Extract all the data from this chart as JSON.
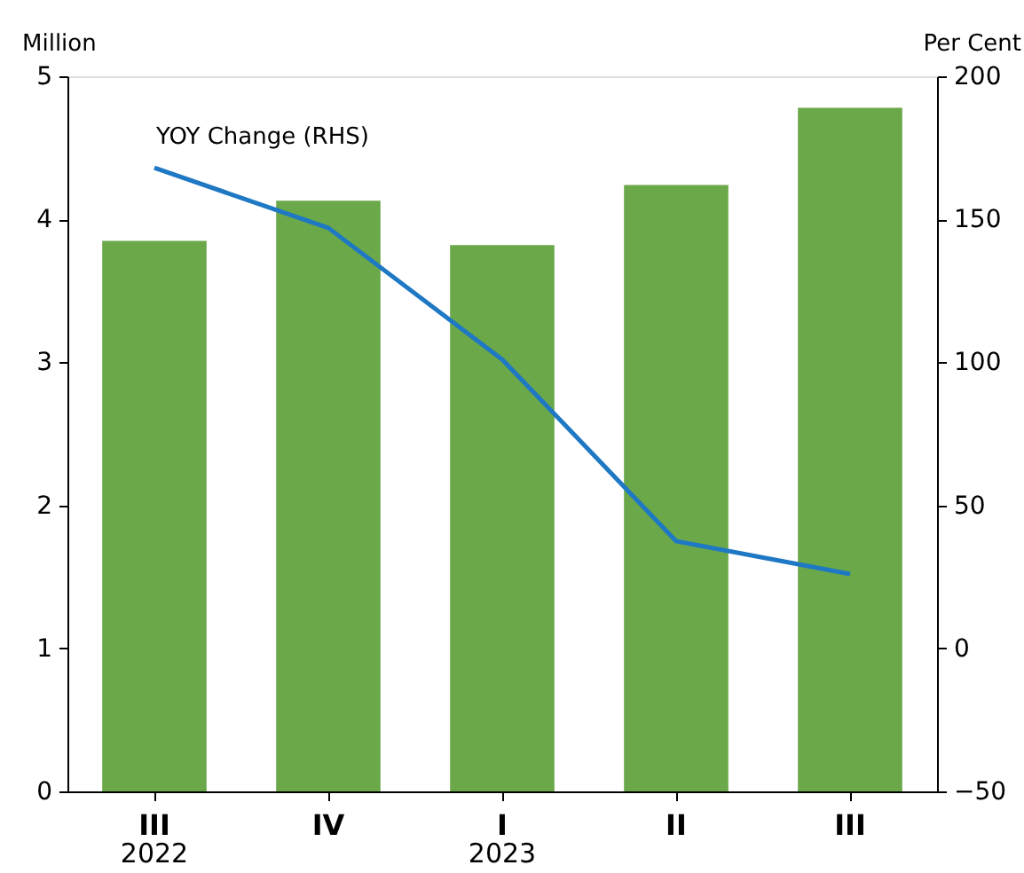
{
  "chart_data": {
    "type": "bar",
    "ylabel": "Million",
    "y2label": "Per Cent",
    "categories": [
      "III\n2022",
      "IV",
      "I\n2023",
      "II",
      "III"
    ],
    "series": [
      {
        "color": "#6aa84a",
        "values": [
          3.85,
          4.13,
          3.82,
          4.24,
          4.78
        ]
      },
      {
        "type": "line",
        "axis": "y2",
        "color": "#1f78c4",
        "values": [
          168,
          147,
          101,
          37.5,
          26
        ]
      }
    ],
    "ylim": [
      0,
      5
    ],
    "yticks": [
      0,
      1,
      2,
      3,
      4,
      5
    ],
    "y2lim": [
      -50,
      200
    ],
    "y2ticks": [
      -50,
      0,
      50,
      100,
      150,
      200
    ],
    "annotations": [
      "YOY Change (RHS)"
    ],
    "grid": false,
    "marker": "none",
    "line_style": "solid"
  }
}
